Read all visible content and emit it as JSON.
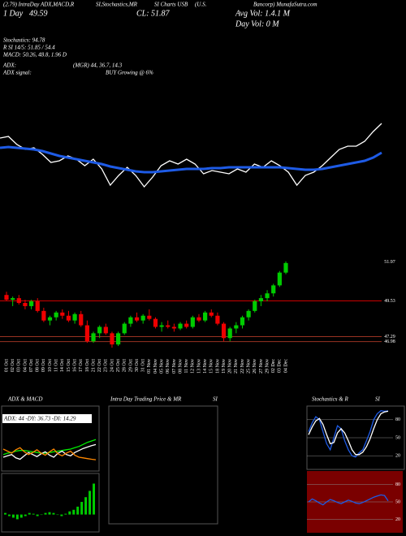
{
  "header": {
    "top": [
      "(2.79) IntraDay ADX,MACD,R",
      "SI,Stochastics,MR",
      "SI Charts USB",
      "(U.S.",
      "Bancorp) MunafaSutra.com"
    ],
    "day": "1 Day",
    "open": "49.59",
    "close": "CL: 51.87",
    "avg_vol": "Avg Vol: 1.4.1 M",
    "day_vol": "Day Vol: 0 M",
    "lines": [
      "Stochastics: 94.78",
      "R SI 14/5: 51.85 / 54.4",
      "MACD: 50.26, 48.8, 1.96 D"
    ],
    "adx": "ADX:",
    "adx_val": "(MGR) 44, 36.7, 14.3",
    "adx_sig": "ADX signal:",
    "adx_sig_val": "BUY Growing @ 6%",
    "panel_adx": "ADX & MACD",
    "panel_intra": "Intra Day Trading Price & MR",
    "panel_intra2": "SI",
    "panel_stoch": "Stochastics & R",
    "panel_stoch2": "SI",
    "adx_box": "ADX: 44 -DY: 36.73 -DI: 14.29"
  },
  "chart_data": [
    {
      "type": "line",
      "ylim": [
        47.5,
        52.5
      ],
      "series": [
        {
          "name": "Price",
          "color": "#ffffff",
          "values": [
            51.0,
            51.1,
            50.6,
            50.3,
            50.4,
            50.0,
            49.5,
            49.6,
            49.9,
            49.7,
            49.3,
            49.7,
            49.1,
            48.1,
            48.7,
            49.2,
            48.7,
            48.0,
            48.6,
            49.3,
            49.6,
            49.4,
            49.7,
            49.4,
            48.8,
            49.0,
            48.9,
            48.8,
            49.1,
            48.9,
            49.4,
            49.2,
            49.6,
            49.3,
            48.9,
            48.1,
            48.7,
            48.9,
            49.3,
            49.8,
            50.3,
            50.5,
            50.5,
            50.8,
            51.4,
            51.9
          ]
        },
        {
          "name": "Average",
          "color": "#1e5be6",
          "values": [
            50.4,
            50.45,
            50.4,
            50.35,
            50.3,
            50.2,
            50.05,
            49.9,
            49.8,
            49.7,
            49.6,
            49.5,
            49.4,
            49.25,
            49.15,
            49.05,
            48.95,
            48.9,
            48.9,
            48.95,
            49.0,
            49.05,
            49.1,
            49.1,
            49.1,
            49.15,
            49.15,
            49.2,
            49.2,
            49.2,
            49.2,
            49.2,
            49.2,
            49.2,
            49.15,
            49.1,
            49.05,
            49.05,
            49.1,
            49.2,
            49.3,
            49.4,
            49.5,
            49.6,
            49.8,
            50.1
          ]
        }
      ]
    },
    {
      "type": "candlestick",
      "ylim": [
        46.4,
        52.3
      ],
      "up_color": "#00cc00",
      "down_color": "#ee0000",
      "yticks": [
        51.97,
        49.53,
        47.29,
        46.98
      ],
      "tick_line_colors": [
        "#000000",
        "#cc0000",
        "#993322",
        "#993322"
      ],
      "categories": [
        "01 Oct",
        "02 Oct",
        "03 Oct",
        "04 Oct",
        "07 Oct",
        "08 Oct",
        "09 Oct",
        "10 Oct",
        "11 Oct",
        "14 Oct",
        "15 Oct",
        "16 Oct",
        "17 Oct",
        "18 Oct",
        "21 Oct",
        "22 Oct",
        "23 Oct",
        "24 Oct",
        "25 Oct",
        "28 Oct",
        "29 Oct",
        "30 Oct",
        "31 Oct",
        "01 Nov",
        "04 Nov",
        "05 Nov",
        "06 Nov",
        "07 Nov",
        "08 Nov",
        "11 Nov",
        "12 Nov",
        "13 Nov",
        "14 Nov",
        "15 Nov",
        "18 Nov",
        "19 Nov",
        "20 Nov",
        "21 Nov",
        "22 Nov",
        "25 Nov",
        "26 Nov",
        "27 Nov",
        "29 Nov",
        "02 Dec",
        "03 Dec",
        "04 Dec"
      ],
      "open": [
        49.9,
        49.6,
        49.7,
        49.4,
        49.2,
        49.5,
        48.9,
        48.3,
        48.5,
        48.8,
        48.6,
        48.3,
        48.7,
        48.0,
        47.0,
        47.5,
        47.9,
        47.5,
        46.8,
        47.5,
        48.1,
        48.5,
        48.3,
        48.6,
        48.4,
        47.9,
        48.0,
        47.9,
        47.8,
        48.1,
        47.9,
        48.5,
        48.3,
        48.8,
        48.6,
        48.1,
        47.2,
        47.8,
        48.0,
        48.5,
        48.9,
        49.5,
        49.7,
        50.0,
        50.5,
        51.3
      ],
      "high": [
        50.1,
        49.8,
        49.9,
        49.6,
        49.6,
        49.7,
        49.1,
        48.6,
        48.9,
        49.0,
        48.9,
        48.8,
        48.9,
        48.3,
        47.6,
        48.0,
        48.1,
        47.6,
        47.6,
        48.2,
        48.6,
        48.8,
        48.7,
        49.0,
        48.5,
        48.2,
        48.3,
        48.1,
        48.2,
        48.3,
        48.6,
        48.7,
        48.9,
        49.0,
        48.8,
        48.2,
        47.9,
        48.2,
        48.6,
        49.0,
        49.6,
        49.9,
        50.2,
        50.6,
        51.4,
        52.0
      ],
      "low": [
        49.5,
        49.2,
        49.3,
        49.0,
        49.0,
        48.8,
        48.2,
        48.0,
        48.3,
        48.4,
        48.2,
        48.1,
        47.9,
        46.9,
        46.9,
        47.2,
        47.4,
        46.6,
        46.7,
        47.4,
        47.9,
        48.2,
        48.1,
        48.3,
        47.8,
        47.6,
        47.8,
        47.6,
        47.7,
        47.8,
        47.8,
        48.2,
        48.2,
        48.5,
        48.0,
        47.0,
        47.0,
        47.5,
        47.8,
        48.3,
        48.8,
        49.2,
        49.5,
        49.8,
        50.4,
        51.2
      ],
      "close": [
        49.6,
        49.7,
        49.4,
        49.2,
        49.5,
        48.9,
        48.3,
        48.5,
        48.8,
        48.6,
        48.3,
        48.7,
        48.0,
        47.0,
        47.5,
        47.9,
        47.5,
        46.8,
        47.5,
        48.1,
        48.5,
        48.3,
        48.6,
        48.4,
        47.9,
        48.0,
        47.9,
        47.8,
        48.1,
        47.9,
        48.5,
        48.3,
        48.8,
        48.6,
        48.1,
        47.2,
        47.8,
        48.0,
        48.5,
        48.9,
        49.5,
        49.7,
        50.0,
        50.5,
        51.3,
        51.9
      ]
    },
    {
      "type": "line",
      "ylim": [
        0,
        60
      ],
      "series": [
        {
          "name": "ADX",
          "color": "#00ee00",
          "values": [
            22,
            24,
            25,
            27,
            28,
            28,
            27,
            26,
            25,
            24,
            24,
            25,
            26,
            27,
            28,
            29,
            30,
            32,
            34,
            37,
            40,
            42,
            44
          ]
        },
        {
          "name": "+DI",
          "color": "#ffffff",
          "values": [
            18,
            20,
            22,
            17,
            15,
            20,
            25,
            22,
            19,
            23,
            26,
            21,
            18,
            24,
            27,
            22,
            20,
            25,
            28,
            31,
            33,
            35,
            36.73
          ]
        },
        {
          "name": "-DI",
          "color": "#ff8800",
          "values": [
            30,
            27,
            24,
            29,
            32,
            26,
            22,
            25,
            29,
            24,
            21,
            26,
            30,
            23,
            20,
            24,
            27,
            21,
            18,
            17,
            16,
            15,
            14.29
          ]
        }
      ]
    },
    {
      "type": "bar",
      "ylim": [
        -1,
        2.5
      ],
      "color": "#00cc00",
      "values": [
        0.1,
        -0.1,
        -0.2,
        -0.3,
        -0.2,
        -0.1,
        0.1,
        0.05,
        -0.1,
        0.0,
        0.1,
        0.15,
        0.1,
        0.0,
        -0.1,
        0.05,
        0.2,
        0.3,
        0.5,
        0.8,
        1.1,
        1.5,
        1.96
      ]
    },
    {
      "type": "line",
      "ylim": [
        0,
        100
      ],
      "yticks": [
        80,
        50,
        20
      ],
      "series": [
        {
          "name": "%K",
          "color": "#1e5be6",
          "values": [
            60,
            75,
            85,
            80,
            60,
            40,
            30,
            50,
            70,
            65,
            45,
            30,
            20,
            18,
            25,
            30,
            45,
            60,
            80,
            90,
            95,
            94,
            94.78
          ]
        },
        {
          "name": "%D",
          "color": "#ffffff",
          "values": [
            55,
            68,
            78,
            82,
            72,
            55,
            40,
            42,
            58,
            65,
            58,
            45,
            30,
            22,
            22,
            26,
            35,
            48,
            65,
            80,
            90,
            93,
            94
          ]
        }
      ]
    },
    {
      "type": "line",
      "ylim": [
        0,
        100
      ],
      "yticks": [
        80,
        50,
        20
      ],
      "background": "#7a0000",
      "series": [
        {
          "name": "RSI",
          "color": "#1e5be6",
          "values": [
            50,
            55,
            52,
            48,
            45,
            50,
            54,
            52,
            49,
            47,
            50,
            53,
            51,
            48,
            47,
            49,
            52,
            55,
            58,
            60,
            62,
            61,
            51.85
          ]
        }
      ]
    }
  ]
}
